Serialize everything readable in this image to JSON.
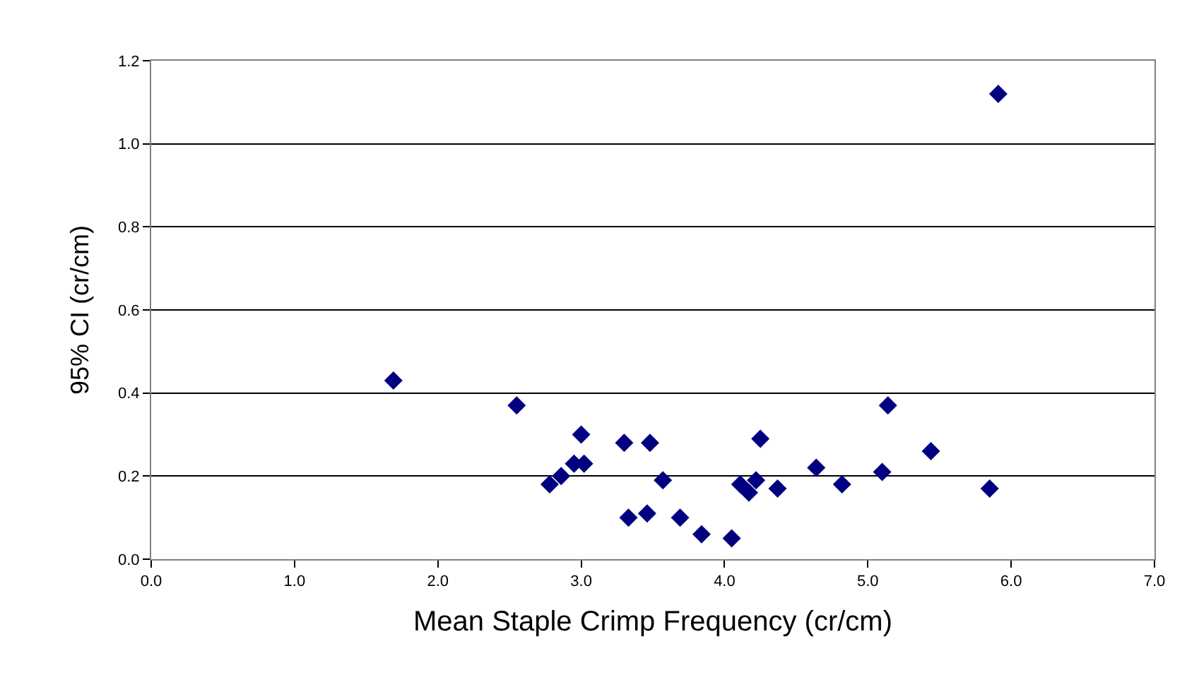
{
  "chart_data": {
    "type": "scatter",
    "xlabel": "Mean Staple Crimp Frequency (cr/cm)",
    "ylabel": "95% CI (cr/cm)",
    "x": [
      1.69,
      2.55,
      2.78,
      2.86,
      2.95,
      3.0,
      3.02,
      3.3,
      3.33,
      3.46,
      3.48,
      3.57,
      3.69,
      3.84,
      4.05,
      4.11,
      4.17,
      4.22,
      4.25,
      4.37,
      4.64,
      4.82,
      5.1,
      5.14,
      5.44,
      5.85,
      5.91
    ],
    "series": [
      {
        "color": "#000080",
        "values": [
          0.43,
          0.37,
          0.18,
          0.2,
          0.23,
          0.3,
          0.23,
          0.28,
          0.1,
          0.11,
          0.28,
          0.19,
          0.1,
          0.06,
          0.05,
          0.18,
          0.16,
          0.19,
          0.29,
          0.17,
          0.22,
          0.18,
          0.21,
          0.37,
          0.26,
          0.17,
          1.12
        ]
      }
    ],
    "xlim": [
      0,
      7
    ],
    "xticks": [
      {
        "value": 0,
        "label": "0.0"
      },
      {
        "value": 1,
        "label": "1.0"
      },
      {
        "value": 2,
        "label": "2.0"
      },
      {
        "value": 3,
        "label": "3.0"
      },
      {
        "value": 4,
        "label": "4.0"
      },
      {
        "value": 5,
        "label": "5.0"
      },
      {
        "value": 6,
        "label": "6.0"
      },
      {
        "value": 7,
        "label": "7.0"
      }
    ],
    "ylim": [
      0,
      1.2
    ],
    "yticks": [
      {
        "value": 0,
        "label": "0.0"
      },
      {
        "value": 0.2,
        "label": "0.2"
      },
      {
        "value": 0.4,
        "label": "0.4"
      },
      {
        "value": 0.6,
        "label": "0.6"
      },
      {
        "value": 0.8,
        "label": "0.8"
      },
      {
        "value": 1.0,
        "label": "1.0"
      },
      {
        "value": 1.2,
        "label": "1.2"
      }
    ],
    "grid": "y",
    "marker": "diamond",
    "legend": false
  }
}
